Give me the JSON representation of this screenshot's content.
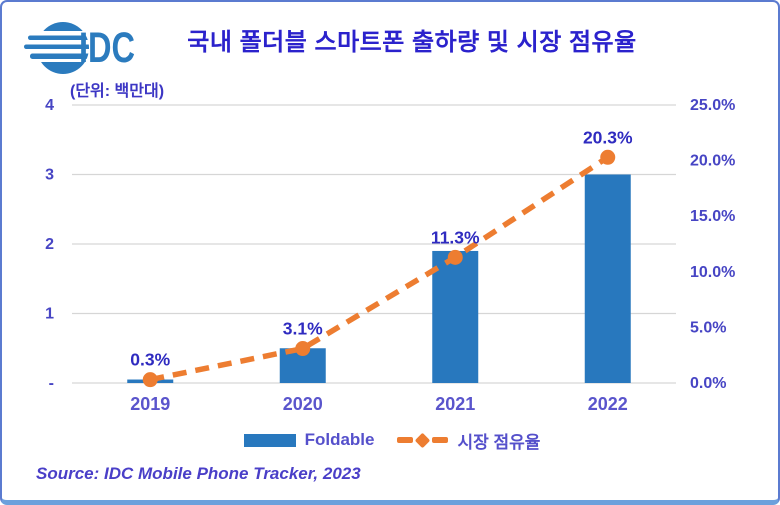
{
  "logo": {
    "text": "IDC",
    "color": "#2b7bbe"
  },
  "header": {
    "title": "국내 폴더블 스마트폰 출하량 및 시장 점유율",
    "title_color": "#2b22cc"
  },
  "chart_data": {
    "type": "bar+line",
    "unit_label": "(단위: 백만대)",
    "categories": [
      "2019",
      "2020",
      "2021",
      "2022"
    ],
    "series": [
      {
        "name": "Foldable",
        "type": "bar",
        "axis": "left",
        "values": [
          0.05,
          0.5,
          1.9,
          3.0
        ],
        "color": "#2878be"
      },
      {
        "name": "시장 점유율",
        "type": "line",
        "axis": "right",
        "values": [
          0.3,
          3.1,
          11.3,
          20.3
        ],
        "labels": [
          "0.3%",
          "3.1%",
          "11.3%",
          "20.3%"
        ],
        "color": "#ed7d31"
      }
    ],
    "left_axis": {
      "min": 0,
      "max": 4,
      "ticks": [
        "-",
        "1",
        "2",
        "3",
        "4"
      ]
    },
    "right_axis": {
      "min": 0,
      "max": 25,
      "ticks": [
        "0.0%",
        "5.0%",
        "10.0%",
        "15.0%",
        "20.0%",
        "25.0%"
      ]
    },
    "legend": {
      "position": "bottom",
      "items": [
        "Foldable",
        "시장 점유율"
      ]
    },
    "grid": true,
    "colors": {
      "gridline": "#d6d6d6",
      "tick_label": "#4745c4",
      "x_label": "#5a55cc",
      "data_label": "#2f2bc0"
    }
  },
  "footer": {
    "source": "Source: IDC Mobile Phone Tracker, 2023"
  }
}
